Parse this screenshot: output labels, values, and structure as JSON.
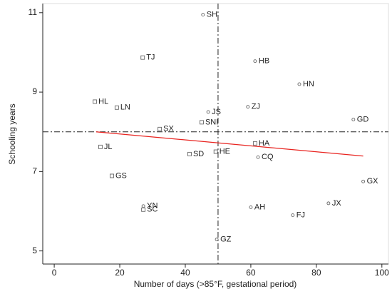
{
  "chart_data": {
    "type": "scatter",
    "xlabel": "Number of days (>85°F, gestational period)",
    "ylabel": "Schooling years",
    "xlim": [
      -3.5,
      102
    ],
    "ylim": [
      4.67,
      11.23
    ],
    "xticks": [
      0,
      20,
      40,
      60,
      80,
      100
    ],
    "yticks": [
      5,
      7,
      9,
      11
    ],
    "point_labels": [
      "SH",
      "TJ",
      "HB",
      "HN",
      "HL",
      "LN",
      "ZJ",
      "JS",
      "GD",
      "SNI",
      "SX",
      "HA",
      "JL",
      "SD",
      "HE",
      "CQ",
      "GS",
      "GX",
      "YN",
      "SC",
      "AH",
      "JX",
      "FJ",
      "GZ"
    ],
    "x": [
      45.4,
      27.0,
      61.3,
      74.8,
      12.4,
      19.1,
      59.1,
      47.0,
      91.3,
      45.0,
      32.2,
      61.3,
      14.1,
      41.3,
      49.3,
      62.2,
      17.6,
      94.3,
      27.2,
      27.2,
      60.0,
      83.7,
      72.8,
      49.6
    ],
    "values": [
      10.95,
      9.87,
      9.78,
      9.2,
      8.76,
      8.61,
      8.63,
      8.5,
      8.31,
      8.24,
      8.07,
      7.71,
      7.62,
      7.44,
      7.5,
      7.36,
      6.89,
      6.75,
      6.13,
      6.04,
      6.1,
      6.2,
      5.9,
      5.29
    ],
    "markers": [
      "circle",
      "square",
      "circle",
      "circle",
      "square",
      "square",
      "circle",
      "circle",
      "circle",
      "square",
      "square",
      "square",
      "square",
      "square",
      "square",
      "circle",
      "square",
      "circle",
      "circle",
      "square",
      "circle",
      "circle",
      "circle",
      "circle"
    ],
    "marker_color": "#666666",
    "fit_line": {
      "x": [
        12.8,
        94.3
      ],
      "values": [
        8.0,
        7.39
      ],
      "color": "#e8231f"
    },
    "ref_x": 50,
    "ref_y": 8
  }
}
